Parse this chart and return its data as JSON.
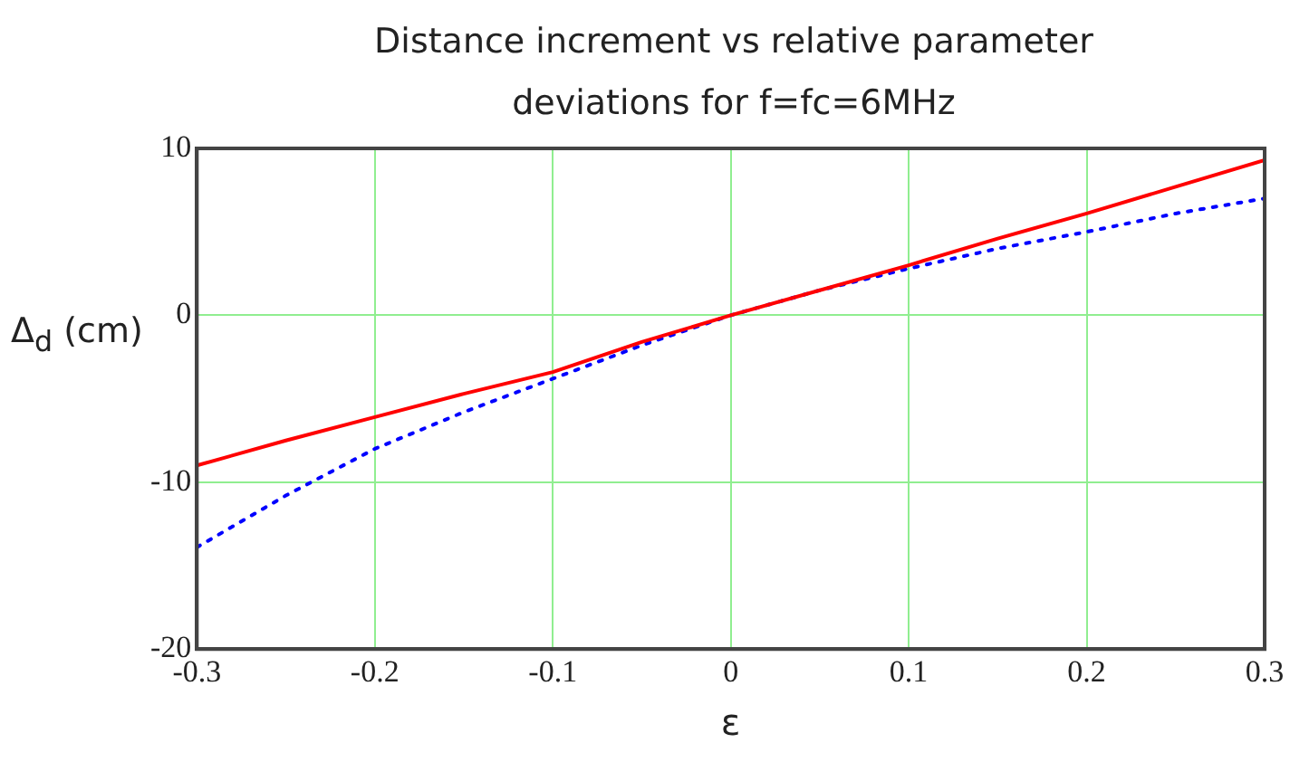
{
  "chart_data": {
    "type": "line",
    "title": "Distance increment vs relative parameter deviations for f=fc=6MHz",
    "xlabel": "ε",
    "ylabel": "Δ$_{d}$ (cm)",
    "x": [
      -0.3,
      -0.25,
      -0.2,
      -0.15,
      -0.1,
      -0.05,
      0,
      0.05,
      0.1,
      0.15,
      0.2,
      0.25,
      0.3
    ],
    "series": [
      {
        "color": "#ff0000",
        "line_style": "solid",
        "values": [
          -9.0,
          -7.5,
          -6.1,
          -4.7,
          -3.4,
          -1.6,
          0,
          1.5,
          3.0,
          4.6,
          6.1,
          7.7,
          9.3
        ]
      },
      {
        "color": "#0000ff",
        "line_style": "dotted",
        "values": [
          -13.9,
          -10.8,
          -8.0,
          -5.8,
          -3.8,
          -1.8,
          0,
          1.5,
          2.8,
          4.0,
          5.0,
          6.1,
          7.0
        ]
      }
    ],
    "xlim": [
      -0.3,
      0.3
    ],
    "xticks": [
      -0.3,
      -0.2,
      -0.1,
      0,
      0.1,
      0.2,
      0.3
    ],
    "ylim": [
      -20,
      10
    ],
    "yticks": [
      -20,
      -10,
      0,
      10
    ],
    "grid": true,
    "legend": false,
    "marker": "none"
  }
}
